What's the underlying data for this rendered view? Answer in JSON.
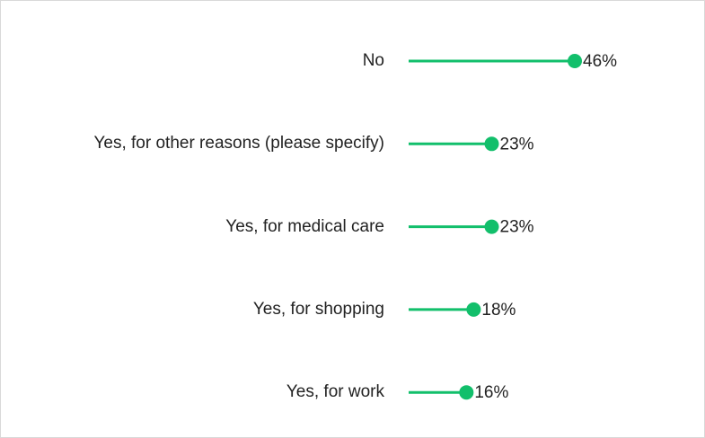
{
  "chart_data": {
    "type": "lollipop",
    "categories": [
      "No",
      "Yes, for other reasons (please specify)",
      "Yes, for medical care",
      "Yes, for shopping",
      "Yes, for work"
    ],
    "values": [
      46,
      23,
      23,
      18,
      16
    ],
    "value_labels": [
      "46%",
      "23%",
      "23%",
      "18%",
      "16%"
    ],
    "color": "#12bf6b"
  }
}
